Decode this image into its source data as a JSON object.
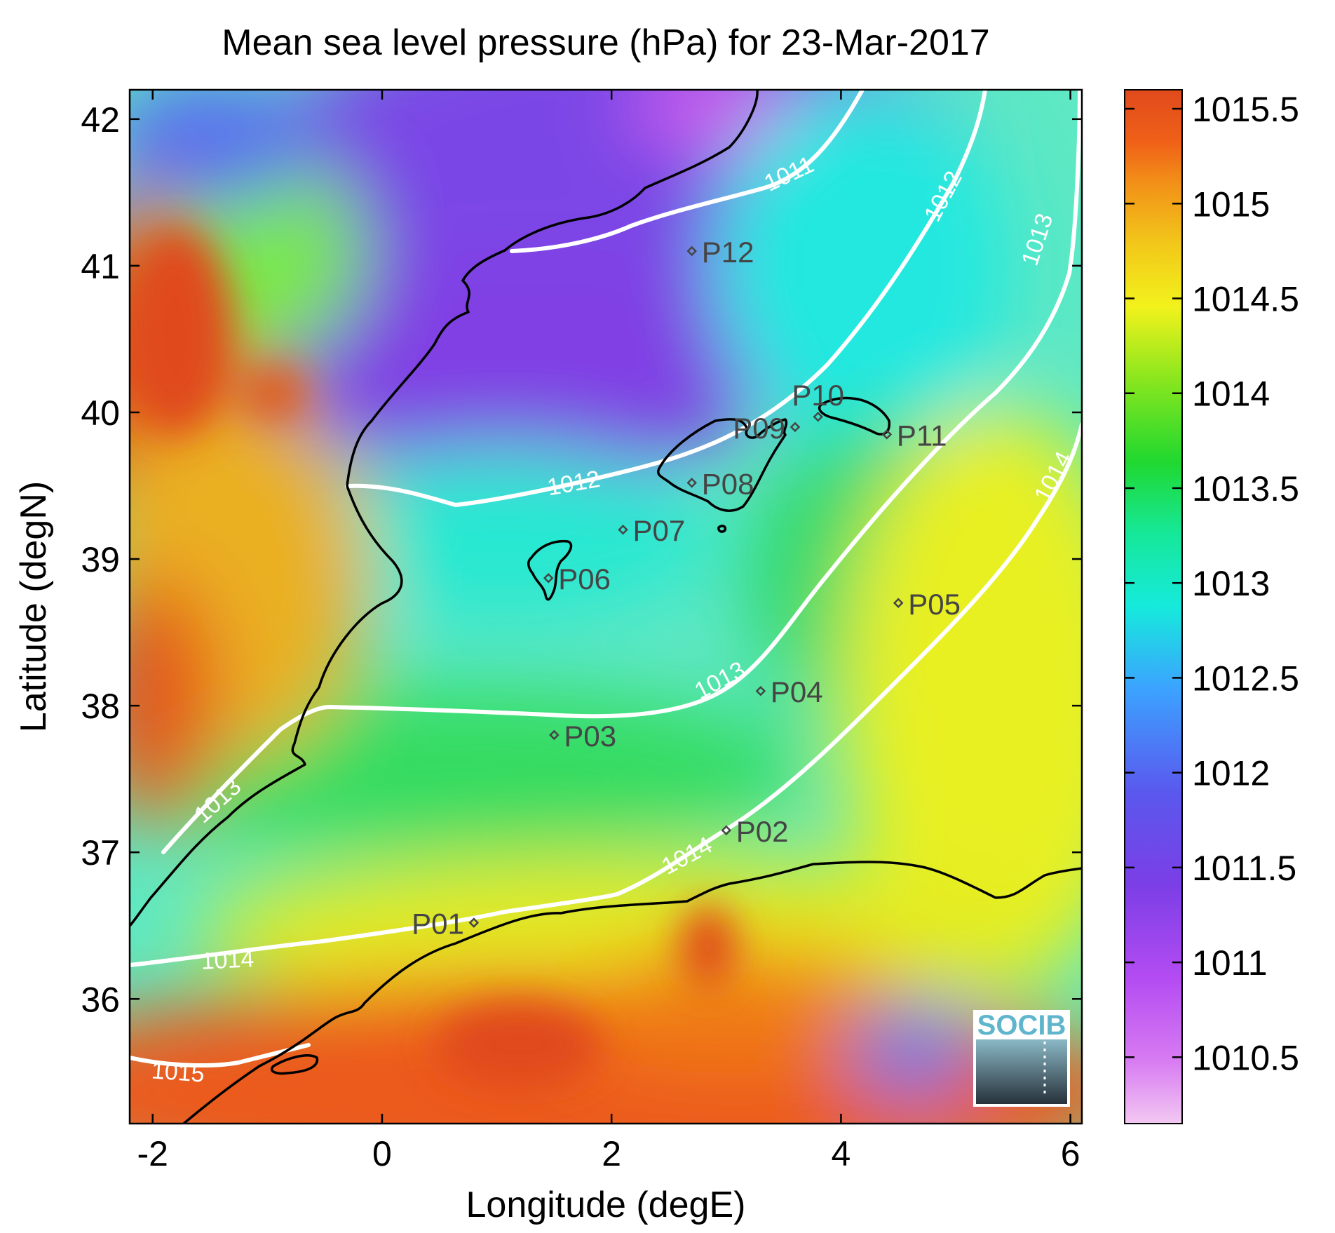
{
  "title": "Mean sea level pressure (hPa) for 23-Mar-2017",
  "xlabel": "Longitude (degE)",
  "ylabel": "Latitude (degN)",
  "chart_data": {
    "type": "heatmap",
    "title": "Mean sea level pressure (hPa) for 23-Mar-2017",
    "xlabel": "Longitude (degE)",
    "ylabel": "Latitude (degN)",
    "xlim": [
      -2.2,
      6.1
    ],
    "ylim": [
      35.15,
      42.2
    ],
    "xticks": [
      "-2",
      "0",
      "2",
      "4",
      "6"
    ],
    "yticks": [
      "36",
      "37",
      "38",
      "39",
      "40",
      "41",
      "42"
    ],
    "colorbar": {
      "min": 1010.15,
      "max": 1015.6,
      "ticks": [
        "1010.5",
        "1011",
        "1011.5",
        "1012",
        "1012.5",
        "1013",
        "1013.5",
        "1014",
        "1014.5",
        "1015",
        "1015.5"
      ]
    },
    "contours": [
      {
        "level": 1011,
        "label": "1011"
      },
      {
        "level": 1012,
        "label": "1012"
      },
      {
        "level": 1013,
        "label": "1013"
      },
      {
        "level": 1014,
        "label": "1014"
      },
      {
        "level": 1015,
        "label": "1015"
      }
    ],
    "stations": [
      {
        "name": "P01",
        "lon": 0.8,
        "lat": 36.52
      },
      {
        "name": "P02",
        "lon": 3.0,
        "lat": 37.15
      },
      {
        "name": "P03",
        "lon": 1.5,
        "lat": 37.8
      },
      {
        "name": "P04",
        "lon": 3.3,
        "lat": 38.1
      },
      {
        "name": "P05",
        "lon": 4.5,
        "lat": 38.7
      },
      {
        "name": "P06",
        "lon": 1.45,
        "lat": 38.87
      },
      {
        "name": "P07",
        "lon": 2.1,
        "lat": 39.2
      },
      {
        "name": "P08",
        "lon": 2.7,
        "lat": 39.52
      },
      {
        "name": "P09",
        "lon": 3.6,
        "lat": 39.9
      },
      {
        "name": "P10",
        "lon": 3.8,
        "lat": 39.97
      },
      {
        "name": "P11",
        "lon": 4.4,
        "lat": 39.85
      },
      {
        "name": "P12",
        "lon": 2.7,
        "lat": 41.1
      }
    ]
  },
  "logo": {
    "text": "SOCIB"
  },
  "colors": {
    "low": "#f2c8f2",
    "purple": "#8845e8",
    "blue": "#4a8cff",
    "cyan": "#16eadc",
    "green": "#20d830",
    "yellow": "#f2f21c",
    "orange": "#f2a418",
    "high": "#e04a1c",
    "contour": "#ffffff",
    "coast": "#000000"
  }
}
